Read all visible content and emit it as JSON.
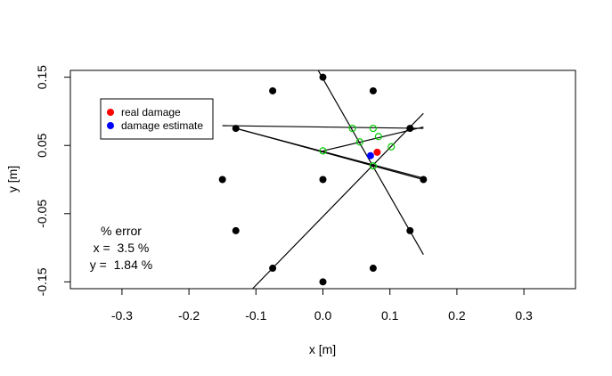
{
  "chart_data": {
    "type": "scatter",
    "title": "",
    "xlabel": "x [m]",
    "ylabel": "y [m]",
    "xlim": [
      -0.377,
      0.377
    ],
    "ylim": [
      -0.16,
      0.16
    ],
    "xticks": [
      -0.3,
      -0.2,
      -0.1,
      0.0,
      0.1,
      0.2,
      0.3
    ],
    "yticks": [
      -0.15,
      -0.05,
      0.05,
      0.15
    ],
    "grid": false,
    "legend_position": "top-left",
    "colors": {
      "sensor": "#000000",
      "real_damage": "#ff0000",
      "estimate": "#0000ff",
      "intersection": "#00cc00"
    },
    "sensors": {
      "x": [
        0.0,
        -0.075,
        0.075,
        -0.13,
        0.13,
        -0.15,
        0.0,
        0.15,
        -0.13,
        0.13,
        -0.075,
        0.075,
        0.0
      ],
      "y": [
        0.15,
        0.13,
        0.13,
        0.075,
        0.075,
        0.0,
        0.0,
        0.0,
        -0.075,
        -0.075,
        -0.13,
        -0.13,
        -0.15
      ]
    },
    "real_damage": {
      "x": 0.081,
      "y": 0.04,
      "legend_label": "real damage"
    },
    "damage_estimate": {
      "x": 0.071,
      "y": 0.035,
      "legend_label": "damage estimate"
    },
    "path_lines": [
      {
        "x": [
          -0.01,
          0.15
        ],
        "y": [
          0.165,
          -0.11
        ]
      },
      {
        "x": [
          -0.13,
          0.15
        ],
        "y": [
          0.075,
          0.0
        ]
      },
      {
        "x": [
          -0.15,
          0.15
        ],
        "y": [
          0.079,
          0.075
        ]
      },
      {
        "x": [
          -0.105,
          0.15
        ],
        "y": [
          -0.16,
          0.097
        ]
      },
      {
        "x": [
          0.0,
          0.15
        ],
        "y": [
          0.042,
          0.077
        ]
      },
      {
        "x": [
          -0.13,
          0.15
        ],
        "y": [
          0.075,
          0.002
        ]
      }
    ],
    "intersections": {
      "x": [
        0.044,
        0.075,
        0.083,
        0.055,
        0.0,
        0.102,
        0.075
      ],
      "y": [
        0.075,
        0.075,
        0.063,
        0.055,
        0.042,
        0.048,
        0.02
      ]
    },
    "annotation": {
      "header": "% error",
      "x_line": "x =  3.5 %",
      "y_line": "y =  1.84 %"
    }
  }
}
